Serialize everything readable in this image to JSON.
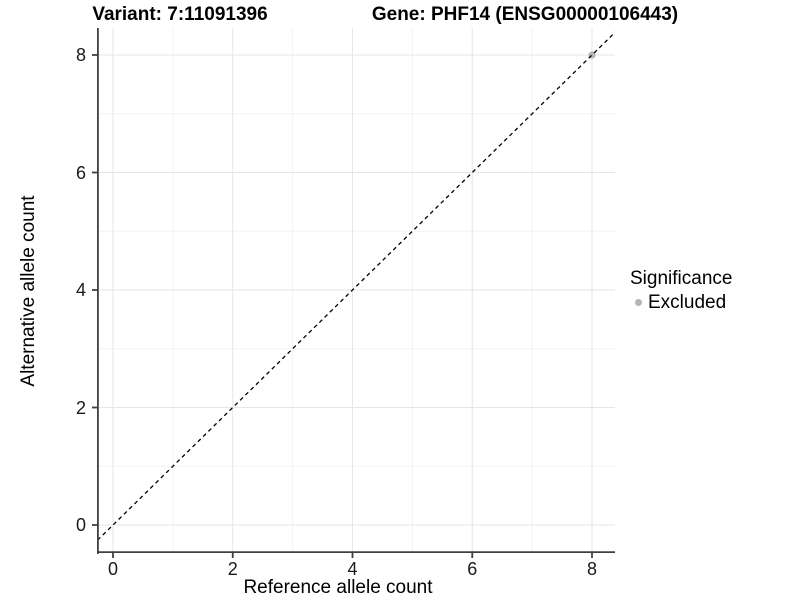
{
  "title": {
    "variant": "Variant: 7:11091396",
    "gene": "Gene: PHF14 (ENSG00000106443)"
  },
  "axes": {
    "x": {
      "label": "Reference allele count",
      "tick_labels": [
        "0",
        "2",
        "4",
        "6",
        "8"
      ],
      "tick_values": [
        0,
        2,
        4,
        6,
        8
      ]
    },
    "y": {
      "label": "Alternative allele count",
      "tick_labels": [
        "0",
        "2",
        "4",
        "6",
        "8"
      ],
      "tick_values": [
        0,
        2,
        4,
        6,
        8
      ]
    }
  },
  "legend": {
    "title": "Significance",
    "items": [
      {
        "label": "Excluded",
        "color": "#b5b5b5"
      }
    ]
  },
  "chart_data": {
    "type": "scatter",
    "title": "Variant: 7:11091396 | Gene: PHF14 (ENSG00000106443)",
    "xlabel": "Reference allele count",
    "ylabel": "Alternative allele count",
    "xlim": [
      -0.4,
      8.4
    ],
    "ylim": [
      -0.45,
      8.45
    ],
    "x_ticks": [
      0,
      2,
      4,
      6,
      8
    ],
    "y_ticks": [
      0,
      2,
      4,
      6,
      8
    ],
    "grid": "major+minor",
    "legend_position": "right",
    "series": [
      {
        "name": "Excluded",
        "color": "#b5b5b5",
        "points": [
          {
            "x": 8,
            "y": 8
          }
        ]
      }
    ],
    "reference_line": {
      "style": "dashed",
      "color": "#000000",
      "slope": 1,
      "intercept": 0,
      "equation": "y = x"
    }
  },
  "colors": {
    "background": "#ffffff",
    "grid_major": "#e6e6e6",
    "grid_minor": "#f3f3f3",
    "axis_line": "#404040",
    "dashed_line": "#000000",
    "excluded_point": "#b5b5b5"
  }
}
